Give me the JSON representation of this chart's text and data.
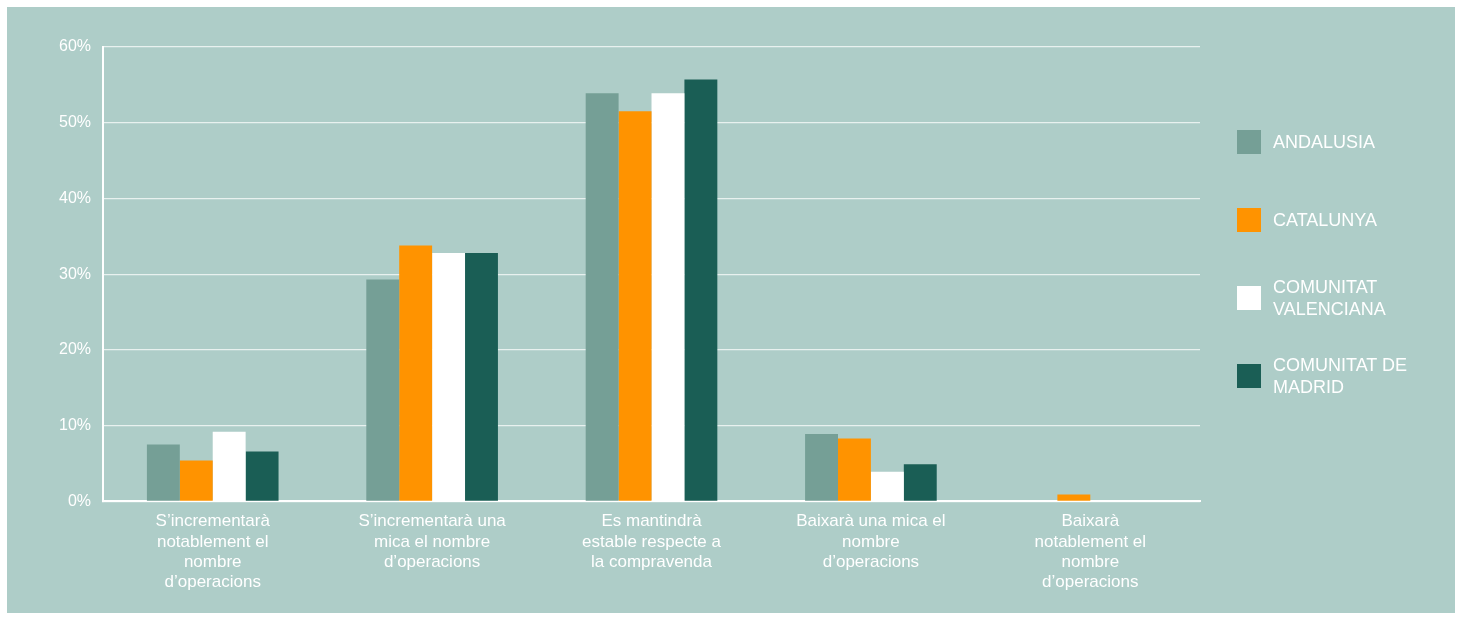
{
  "chart_data": {
    "type": "bar",
    "categories": [
      "S’incrementarà notablement el nombre d’operacions",
      "S’incrementarà una mica el nombre d’operacions",
      "Es mantindrà estable respecte a la compravenda",
      "Baixarà una mica el nombre d’operacions",
      "Baixarà notablement el nombre d’operacions"
    ],
    "series": [
      {
        "name": "ANDALUSIA",
        "color": "#759f96",
        "values": [
          7.5,
          29.3,
          53.9,
          8.9,
          0
        ]
      },
      {
        "name": "CATALUNYA",
        "color": "#ff9300",
        "values": [
          5.4,
          33.8,
          51.5,
          8.3,
          0.9
        ]
      },
      {
        "name": "COMUNITAT VALENCIANA",
        "color": "#ffffff",
        "values": [
          9.2,
          32.8,
          53.9,
          3.9,
          0
        ]
      },
      {
        "name": "COMUNITAT DE MADRID",
        "color": "#1a5e55",
        "values": [
          6.6,
          32.8,
          55.7,
          4.9,
          0
        ]
      }
    ],
    "ylim": [
      0,
      60
    ],
    "yticks": [
      {
        "value": 0,
        "label": "0%"
      },
      {
        "value": 10,
        "label": "10%"
      },
      {
        "value": 20,
        "label": "20%"
      },
      {
        "value": 30,
        "label": "30%"
      },
      {
        "value": 40,
        "label": "40%"
      },
      {
        "value": 50,
        "label": "50%"
      },
      {
        "value": 60,
        "label": "60%"
      }
    ],
    "grid": "y",
    "legend": "right"
  }
}
